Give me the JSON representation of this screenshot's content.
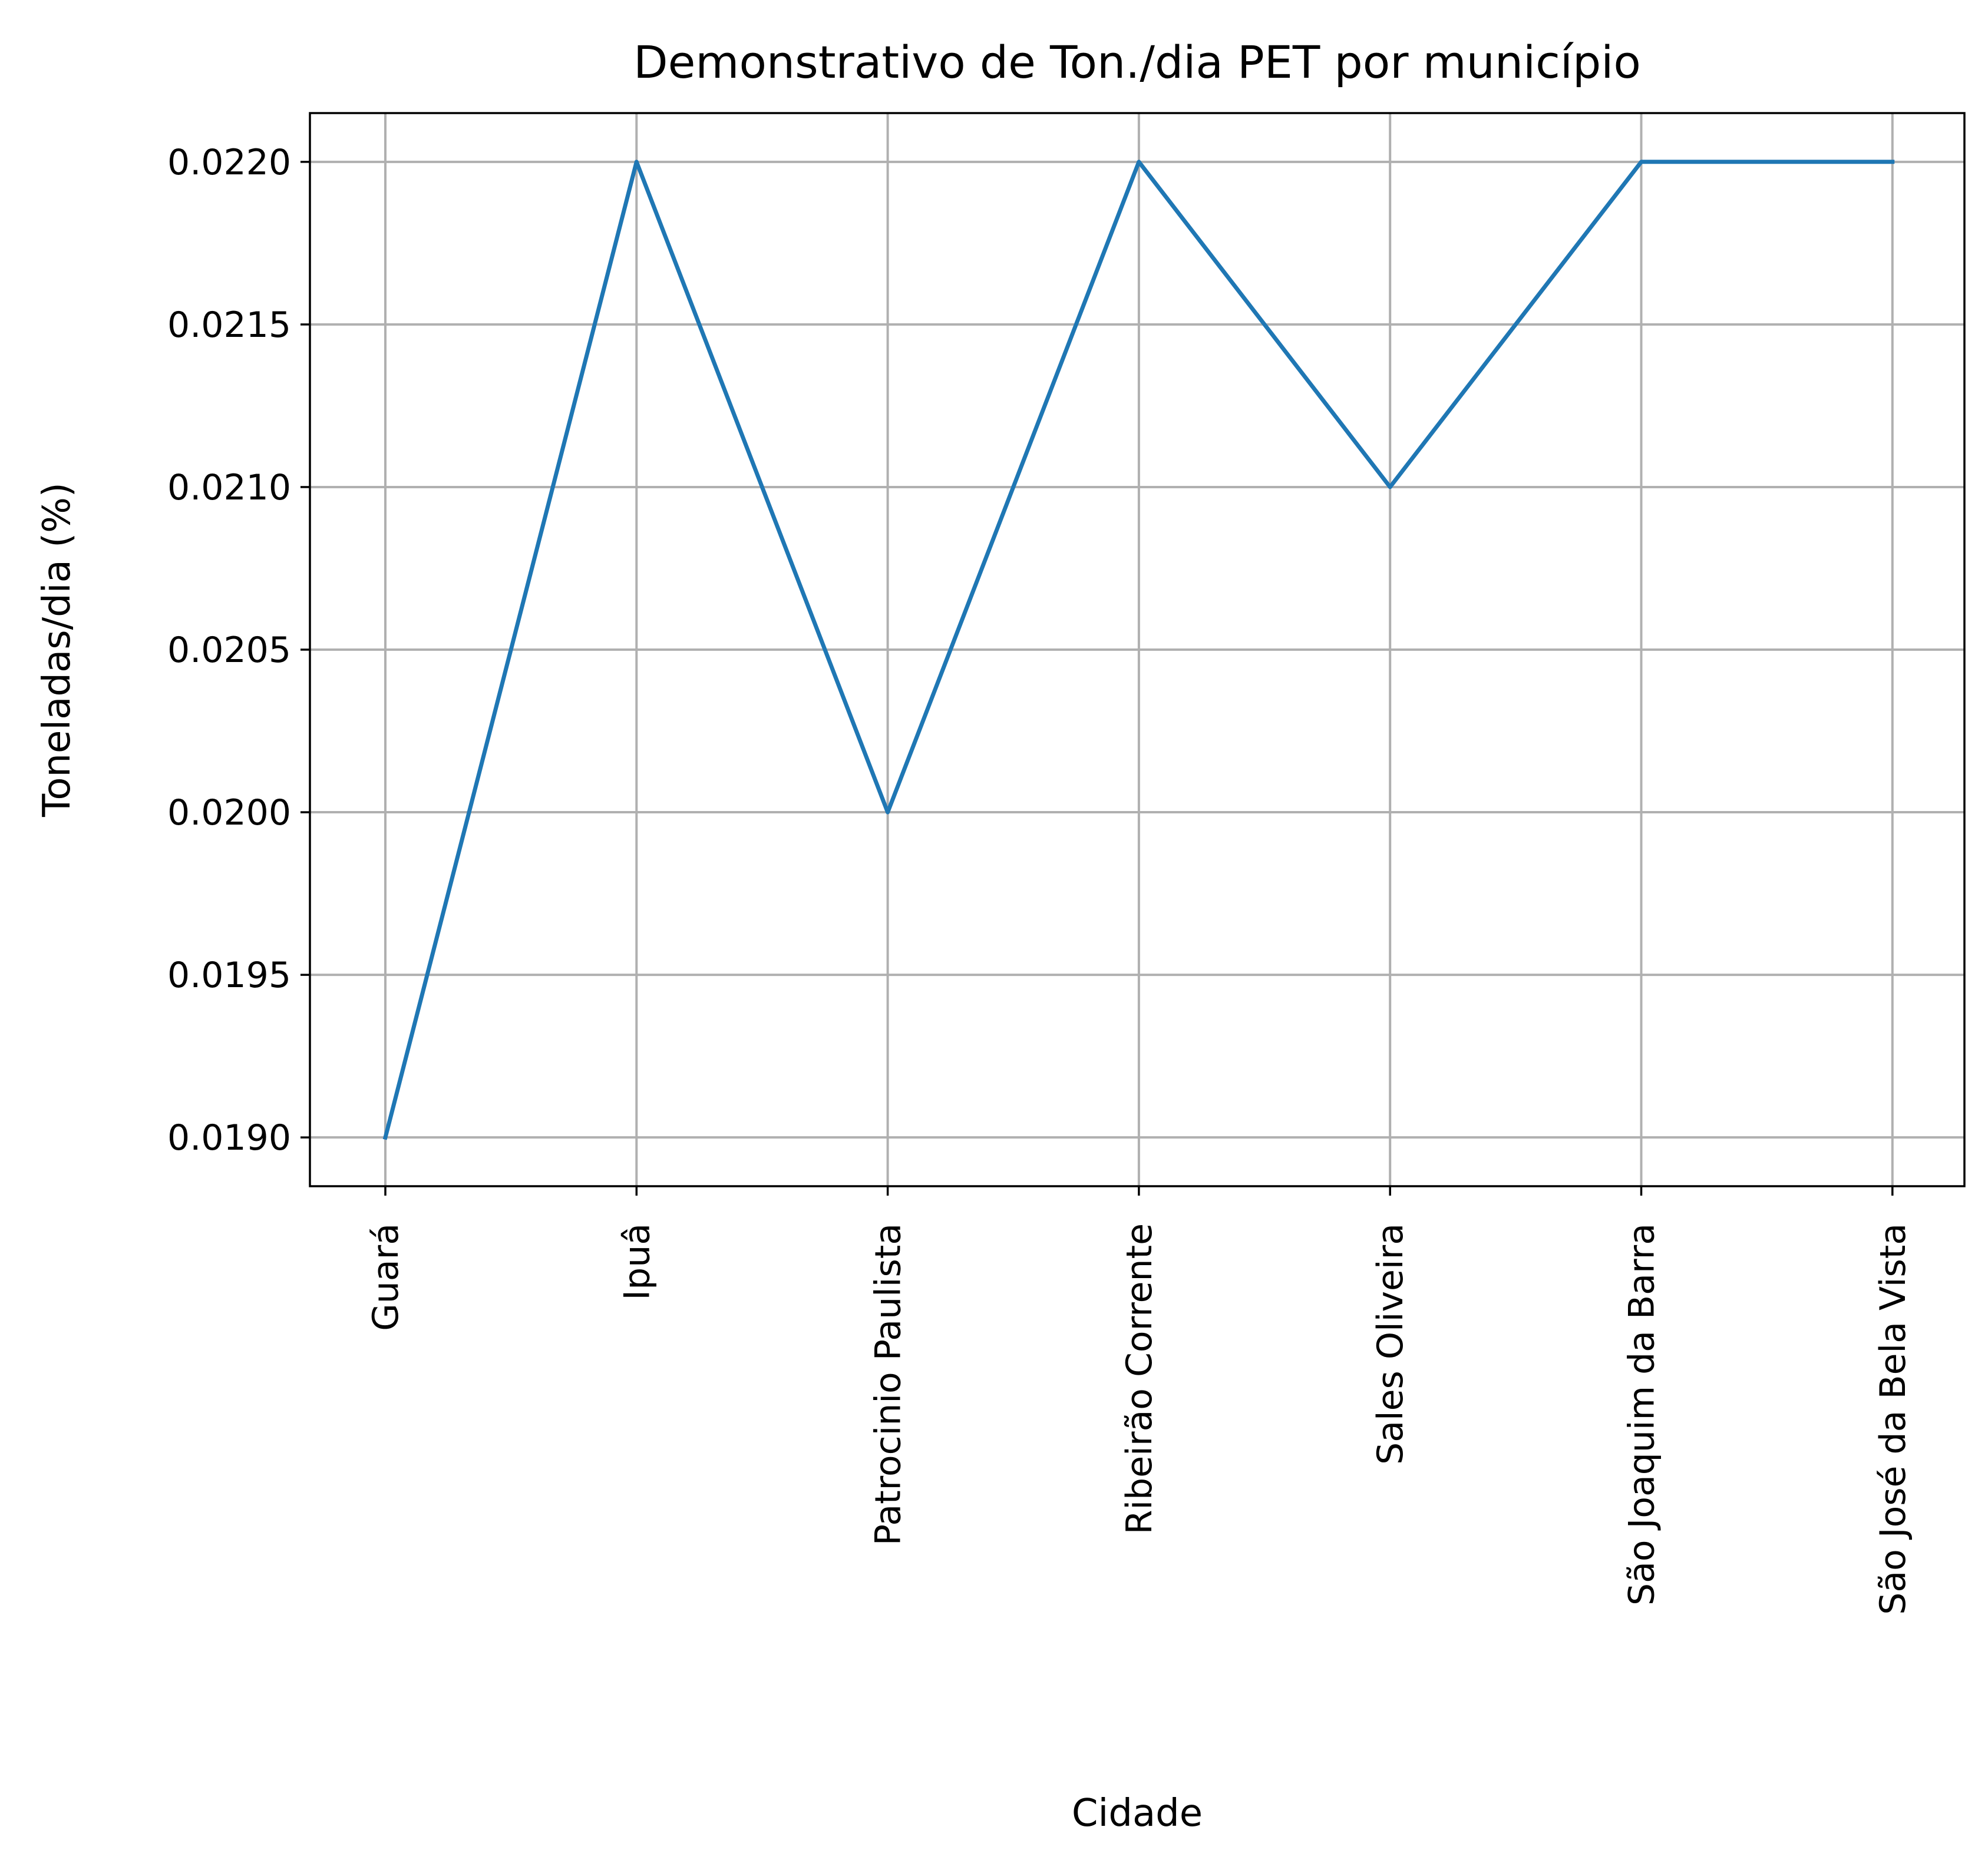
{
  "chart_data": {
    "type": "line",
    "title": "Demonstrativo de Ton./dia PET por município",
    "xlabel": "Cidade",
    "ylabel": "Toneladas/dia (%)",
    "categories": [
      "Guará",
      "Ipuâ",
      "Patrocinio Paulista",
      "Ribeirão Corrente",
      "Sales Oliveira",
      "São Joaquim da Barra",
      "São José da Bela Vista"
    ],
    "series": [
      {
        "values": [
          0.019,
          0.022,
          0.02,
          0.022,
          0.021,
          0.022,
          0.022
        ],
        "color": "#1f77b4"
      }
    ],
    "ylim": [
      0.01885,
      0.02215
    ],
    "yticks": [
      0.019,
      0.0195,
      0.02,
      0.0205,
      0.021,
      0.0215,
      0.022
    ],
    "ytick_labels": [
      "0.0190",
      "0.0195",
      "0.0200",
      "0.0205",
      "0.0210",
      "0.0215",
      "0.0220"
    ],
    "grid": true,
    "x_tick_rotation": "vertical"
  }
}
